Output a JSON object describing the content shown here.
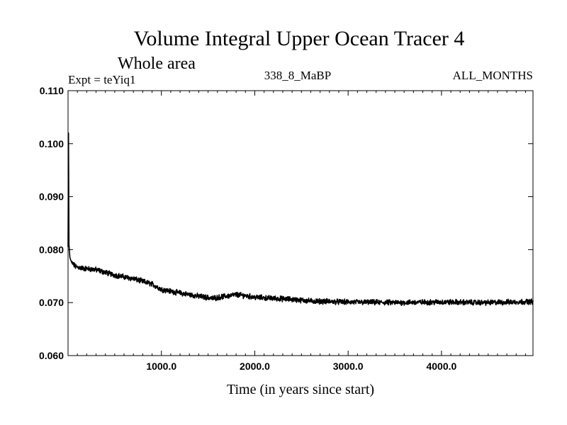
{
  "chart_data": {
    "type": "line",
    "title": "Volume Integral Upper Ocean Tracer 4",
    "subtitle": "Whole area",
    "experiment_label": "Expt = teYiq1",
    "period_label": "338_8_MaBP",
    "months_label": "ALL_MONTHS",
    "xlabel": "Time (in years since start)",
    "ylabel": "",
    "xlim": [
      0,
      4980
    ],
    "ylim": [
      0.06,
      0.11
    ],
    "x_ticks": [
      1000,
      2000,
      3000,
      4000
    ],
    "x_tick_labels": [
      "1000.0",
      "2000.0",
      "3000.0",
      "4000.0"
    ],
    "y_ticks": [
      0.06,
      0.07,
      0.08,
      0.09,
      0.1,
      0.11
    ],
    "y_tick_labels": [
      "0.060",
      "0.070",
      "0.080",
      "0.090",
      "0.100",
      "0.110"
    ],
    "grid": false,
    "series": [
      {
        "name": "Volume Integral Upper Ocean Tracer 4",
        "color": "#000000",
        "noise_amplitude": 0.0004,
        "x": [
          0,
          5,
          10,
          20,
          40,
          80,
          150,
          300,
          500,
          700,
          900,
          1000,
          1200,
          1400,
          1550,
          1650,
          1800,
          1900,
          2000,
          2200,
          2400,
          2600,
          2800,
          3000,
          3500,
          4000,
          4500,
          4980
        ],
        "values": [
          0.0805,
          0.102,
          0.081,
          0.0785,
          0.0775,
          0.0768,
          0.0765,
          0.0762,
          0.0752,
          0.0745,
          0.0735,
          0.0725,
          0.0718,
          0.0712,
          0.0708,
          0.0711,
          0.0715,
          0.0713,
          0.071,
          0.0708,
          0.0706,
          0.0703,
          0.0702,
          0.0701,
          0.07,
          0.0701,
          0.07,
          0.0702
        ]
      }
    ]
  }
}
